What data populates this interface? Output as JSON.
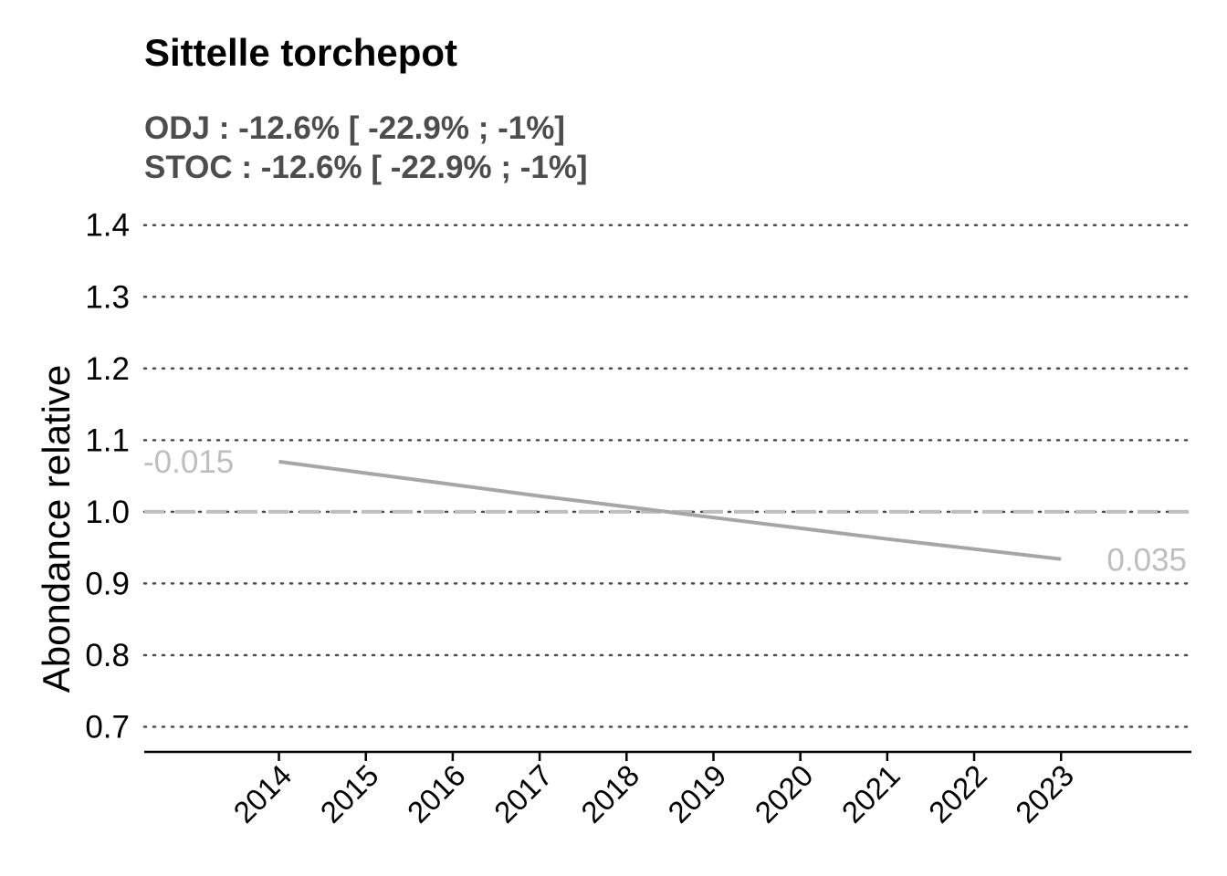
{
  "chart_data": {
    "type": "line",
    "title": "Sittelle torchepot",
    "subtitle_lines": [
      "ODJ : -12.6% [ -22.9% ; -1%]",
      "STOC : -12.6% [ -22.9% ; -1%]"
    ],
    "ylabel": "Abondance relative",
    "xlabel": "",
    "x": [
      2014,
      2015,
      2016,
      2017,
      2018,
      2019,
      2020,
      2021,
      2022,
      2023
    ],
    "series": [
      {
        "values": [
          1.07,
          1.054,
          1.038,
          1.022,
          1.007,
          0.992,
          0.977,
          0.962,
          0.948,
          0.934
        ]
      }
    ],
    "reference_line": 1.0,
    "ylim": [
      0.665,
      1.42
    ],
    "xlim": [
      2012.45,
      2024.5
    ],
    "yticks": [
      0.7,
      0.8,
      0.9,
      1.0,
      1.1,
      1.2,
      1.3,
      1.4
    ],
    "ytick_labels": [
      "0.7",
      "0.8",
      "0.9",
      "1.0",
      "1.1",
      "1.2",
      "1.3",
      "1.4"
    ],
    "grid": "horizontal dotted",
    "start_label": "-0.015",
    "end_label": "0.035",
    "colors": {
      "line": "#a6a6a6",
      "labels": "#bebebe",
      "reference": "#bebebe",
      "grid": "#4d4d4d"
    }
  }
}
